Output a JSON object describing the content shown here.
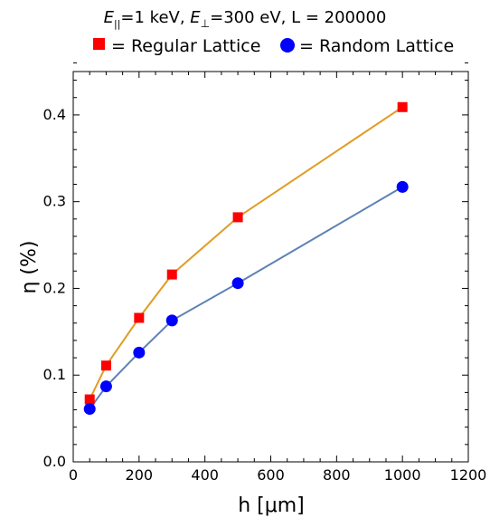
{
  "chart_data": {
    "type": "line",
    "title": {
      "e_par_sym": "E",
      "e_par_sub": "||",
      "e_par_rest": "=1 keV, ",
      "e_perp_sym": "E",
      "e_perp_sub": "⊥",
      "e_perp_rest": "=300 eV, L = 200000"
    },
    "xlabel": "h [μm]",
    "ylabel": "η (%)",
    "xlim": [
      0,
      1200
    ],
    "ylim": [
      0,
      0.45
    ],
    "xticks": [
      "0",
      "200",
      "400",
      "600",
      "800",
      "1000",
      "1200"
    ],
    "yticks": [
      "0.0",
      "0.1",
      "0.2",
      "0.3",
      "0.4"
    ],
    "x": [
      50,
      100,
      200,
      300,
      500,
      1000
    ],
    "series": [
      {
        "name": "Regular Lattice",
        "legend_label": "= Regular Lattice",
        "marker": "square",
        "marker_color": "#ff0000",
        "line_color": "#e19c24",
        "values": [
          0.072,
          0.111,
          0.166,
          0.216,
          0.282,
          0.409
        ]
      },
      {
        "name": "Random Lattice",
        "legend_label": "= Random Lattice",
        "marker": "circle",
        "marker_color": "#0000ff",
        "line_color": "#5e81b5",
        "values": [
          0.061,
          0.087,
          0.126,
          0.163,
          0.206,
          0.317
        ]
      }
    ],
    "grid": false,
    "legend_position": "top"
  }
}
